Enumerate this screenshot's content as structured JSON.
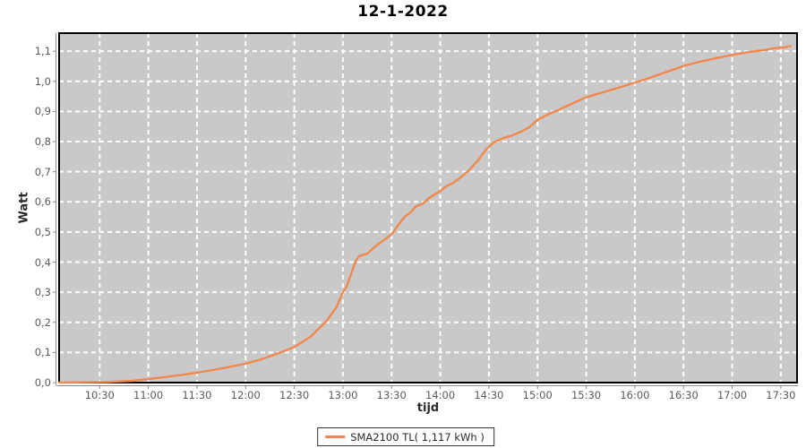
{
  "colors": {
    "page_bg": "#ffffff",
    "plot_bg": "#c9c9c9",
    "grid": "#ffffff",
    "plot_border": "#000000",
    "axis_line": "#8a8a8a",
    "tick_label": "#5a5a5a",
    "series": "#f1884e"
  },
  "chart_data": {
    "type": "line",
    "title": "12-1-2022",
    "xlabel": "tijd",
    "ylabel": "Watt",
    "grid": "dashed-white-on-gray",
    "legend_position": "bottom-center",
    "x_axis": {
      "range": [
        "10:05",
        "17:40"
      ],
      "ticks": [
        "10:30",
        "11:00",
        "11:30",
        "12:00",
        "12:30",
        "13:00",
        "13:30",
        "14:00",
        "14:30",
        "15:00",
        "15:30",
        "16:00",
        "16:30",
        "17:00",
        "17:30"
      ]
    },
    "y_axis": {
      "range": [
        0,
        1.16
      ],
      "ticks": [
        {
          "label": "0,0",
          "value": 0.0
        },
        {
          "label": "0,1",
          "value": 0.1
        },
        {
          "label": "0,2",
          "value": 0.2
        },
        {
          "label": "0,3",
          "value": 0.3
        },
        {
          "label": "0,4",
          "value": 0.4
        },
        {
          "label": "0,5",
          "value": 0.5
        },
        {
          "label": "0,6",
          "value": 0.6
        },
        {
          "label": "0,7",
          "value": 0.7
        },
        {
          "label": "0,8",
          "value": 0.8
        },
        {
          "label": "0,9",
          "value": 0.9
        },
        {
          "label": "1,0",
          "value": 1.0
        },
        {
          "label": "1,1",
          "value": 1.1
        }
      ]
    },
    "series": [
      {
        "name": "SMA2100 TL( 1,117 kWh )",
        "color": "#f1884e",
        "total_kwh": "1,117",
        "points": [
          [
            "10:05",
            0.0
          ],
          [
            "10:20",
            0.001
          ],
          [
            "10:35",
            0.002
          ],
          [
            "10:50",
            0.006
          ],
          [
            "11:00",
            0.012
          ],
          [
            "11:10",
            0.018
          ],
          [
            "11:20",
            0.025
          ],
          [
            "11:30",
            0.033
          ],
          [
            "11:40",
            0.042
          ],
          [
            "11:50",
            0.052
          ],
          [
            "12:00",
            0.063
          ],
          [
            "12:10",
            0.078
          ],
          [
            "12:20",
            0.097
          ],
          [
            "12:30",
            0.118
          ],
          [
            "12:40",
            0.152
          ],
          [
            "12:50",
            0.205
          ],
          [
            "12:56",
            0.25
          ],
          [
            "13:00",
            0.3
          ],
          [
            "13:02",
            0.315
          ],
          [
            "13:05",
            0.36
          ],
          [
            "13:08",
            0.405
          ],
          [
            "13:10",
            0.42
          ],
          [
            "13:15",
            0.428
          ],
          [
            "13:20",
            0.452
          ],
          [
            "13:25",
            0.472
          ],
          [
            "13:30",
            0.492
          ],
          [
            "13:34",
            0.522
          ],
          [
            "13:38",
            0.55
          ],
          [
            "13:42",
            0.567
          ],
          [
            "13:45",
            0.585
          ],
          [
            "13:49",
            0.593
          ],
          [
            "13:53",
            0.612
          ],
          [
            "14:00",
            0.636
          ],
          [
            "14:04",
            0.653
          ],
          [
            "14:08",
            0.663
          ],
          [
            "14:13",
            0.683
          ],
          [
            "14:18",
            0.706
          ],
          [
            "14:24",
            0.742
          ],
          [
            "14:28",
            0.772
          ],
          [
            "14:33",
            0.797
          ],
          [
            "14:38",
            0.81
          ],
          [
            "14:44",
            0.82
          ],
          [
            "14:50",
            0.833
          ],
          [
            "14:55",
            0.848
          ],
          [
            "15:00",
            0.872
          ],
          [
            "15:06",
            0.889
          ],
          [
            "15:12",
            0.903
          ],
          [
            "15:18",
            0.918
          ],
          [
            "15:24",
            0.933
          ],
          [
            "15:30",
            0.947
          ],
          [
            "15:40",
            0.963
          ],
          [
            "15:50",
            0.979
          ],
          [
            "16:00",
            0.996
          ],
          [
            "16:10",
            1.013
          ],
          [
            "16:20",
            1.032
          ],
          [
            "16:30",
            1.051
          ],
          [
            "16:40",
            1.065
          ],
          [
            "16:50",
            1.077
          ],
          [
            "17:00",
            1.088
          ],
          [
            "17:10",
            1.097
          ],
          [
            "17:20",
            1.104
          ],
          [
            "17:26",
            1.11
          ],
          [
            "17:31",
            1.112
          ],
          [
            "17:36",
            1.117
          ]
        ]
      }
    ]
  }
}
